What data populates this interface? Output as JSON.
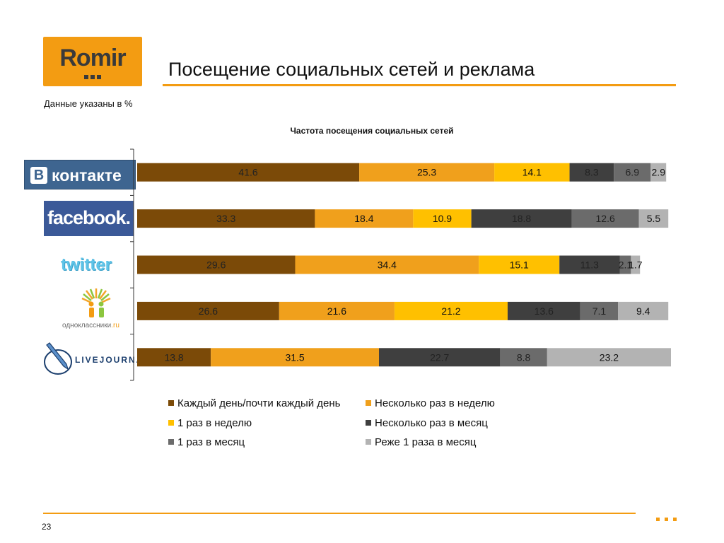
{
  "logo": {
    "text": "Romir"
  },
  "page_title": "Посещение социальных сетей и реклама",
  "unit_note": "Данные указаны в %",
  "brands": {
    "vk": {
      "badge": "B",
      "text": "контакте"
    },
    "facebook": {
      "text": "facebook."
    },
    "twitter": {
      "text": "twitter"
    },
    "odnoklassniki": {
      "text": "одноклассники",
      "suffix": ".ru"
    },
    "livejournal": {
      "text": "LIVEJOURNAL"
    }
  },
  "chart_data": {
    "type": "bar",
    "orientation": "horizontal",
    "stacked": true,
    "title": "Частота посещения социальных сетей",
    "categories": [
      "ВКонтакте",
      "Facebook",
      "Twitter",
      "Одноклассники",
      "LiveJournal"
    ],
    "xlim": [
      0,
      100
    ],
    "series": [
      {
        "name": "Каждый день/почти каждый день",
        "color": "#7b4a08",
        "values": [
          41.6,
          33.3,
          29.6,
          26.6,
          13.8
        ]
      },
      {
        "name": "Несколько раз в неделю",
        "color": "#f0a01c",
        "values": [
          25.3,
          18.4,
          34.4,
          21.6,
          31.5
        ]
      },
      {
        "name": "1 раз в неделю",
        "color": "#ffc000",
        "values": [
          14.1,
          10.9,
          15.1,
          21.2,
          null
        ]
      },
      {
        "name": "Несколько раз в месяц",
        "color": "#3f3f3f",
        "values": [
          8.3,
          18.8,
          11.3,
          13.6,
          22.7
        ]
      },
      {
        "name": "1 раз в месяц",
        "color": "#6b6b6b",
        "values": [
          6.9,
          12.6,
          2.1,
          7.1,
          8.8
        ]
      },
      {
        "name": "Реже 1 раза в месяц",
        "color": "#b3b3b3",
        "values": [
          2.9,
          5.5,
          1.7,
          9.4,
          23.2
        ]
      }
    ],
    "legend_position": "bottom"
  },
  "footer": {
    "page_number": "23"
  }
}
